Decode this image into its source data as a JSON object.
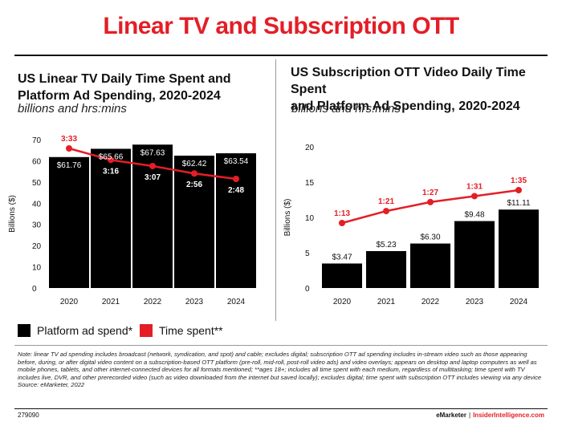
{
  "title": "Linear TV and Subscription OTT",
  "colors": {
    "accent": "#e41e26",
    "bar": "#000000",
    "line": "#e41e26"
  },
  "legend": {
    "bar_label": "Platform ad spend*",
    "line_label": "Time spent**"
  },
  "note": "Note: linear TV ad spending includes broadcast (network, syndication, and spot) and cable; excludes digital; subscription OTT ad spending includes in-stream video such as those appearing before, during, or after digital video content on a subscription-based OTT platform (pre-roll, mid-roll, post-roll video ads) and video overlays; appears on desktop and laptop computers as well as mobile phones, tablets, and other internet-connected devices for all formats mentioned; **ages 18+; includes all time spent with each medium, regardless of multitasking; time spent with TV includes live, DVR, and other prerecorded video (such as video downloaded from the internet but saved locally); excludes digital; time spent with subscription OTT includes viewing via any device",
  "source": "Source: eMarketer, 2022",
  "chart_id": "279090",
  "credit": {
    "brand1": "eMarketer",
    "separator": "|",
    "brand2": "InsiderIntelligence.com"
  },
  "chart_data": [
    {
      "type": "bar",
      "title": "US Linear TV Daily Time Spent and Platform Ad Spending, 2020-2024",
      "title_line1": "US Linear TV Daily Time Spent and",
      "title_line2": "Platform Ad Spending, 2020-2024",
      "subtitle": "billions and hrs:mins",
      "ylabel": "Billions ($)",
      "ylim": [
        0,
        70
      ],
      "yticks": [
        0,
        10,
        20,
        30,
        40,
        50,
        60,
        70
      ],
      "categories": [
        "2020",
        "2021",
        "2022",
        "2023",
        "2024"
      ],
      "series": [
        {
          "name": "Platform ad spend*",
          "type": "bar",
          "values": [
            61.76,
            65.66,
            67.63,
            62.42,
            63.54
          ],
          "labels": [
            "$61.76",
            "$65.66",
            "$67.63",
            "$62.42",
            "$63.54"
          ]
        },
        {
          "name": "Time spent**",
          "type": "line",
          "values": [
            "3:33",
            "3:16",
            "3:07",
            "2:56",
            "2:48"
          ],
          "minutes": [
            213,
            196,
            187,
            176,
            168
          ]
        }
      ],
      "grid": false
    },
    {
      "type": "bar",
      "title": "US Subscription OTT Video Daily Time Spent and Platform Ad Spending, 2020-2024",
      "title_line1": "US Subscription OTT Video Daily Time Spent",
      "title_line2": "and Platform Ad Spending, 2020-2024",
      "subtitle": "billions and hrs:mins",
      "ylabel": "Billions ($)",
      "ylim": [
        0,
        20
      ],
      "yticks": [
        0,
        5,
        10,
        15,
        20
      ],
      "categories": [
        "2020",
        "2021",
        "2022",
        "2023",
        "2024"
      ],
      "series": [
        {
          "name": "Platform ad spend*",
          "type": "bar",
          "values": [
            3.47,
            5.23,
            6.3,
            9.48,
            11.11
          ],
          "labels": [
            "$3.47",
            "$5.23",
            "$6.30",
            "$9.48",
            "$11.11"
          ]
        },
        {
          "name": "Time spent**",
          "type": "line",
          "values": [
            "1:13",
            "1:21",
            "1:27",
            "1:31",
            "1:35"
          ],
          "minutes": [
            73,
            81,
            87,
            91,
            95
          ]
        }
      ],
      "grid": false
    }
  ]
}
